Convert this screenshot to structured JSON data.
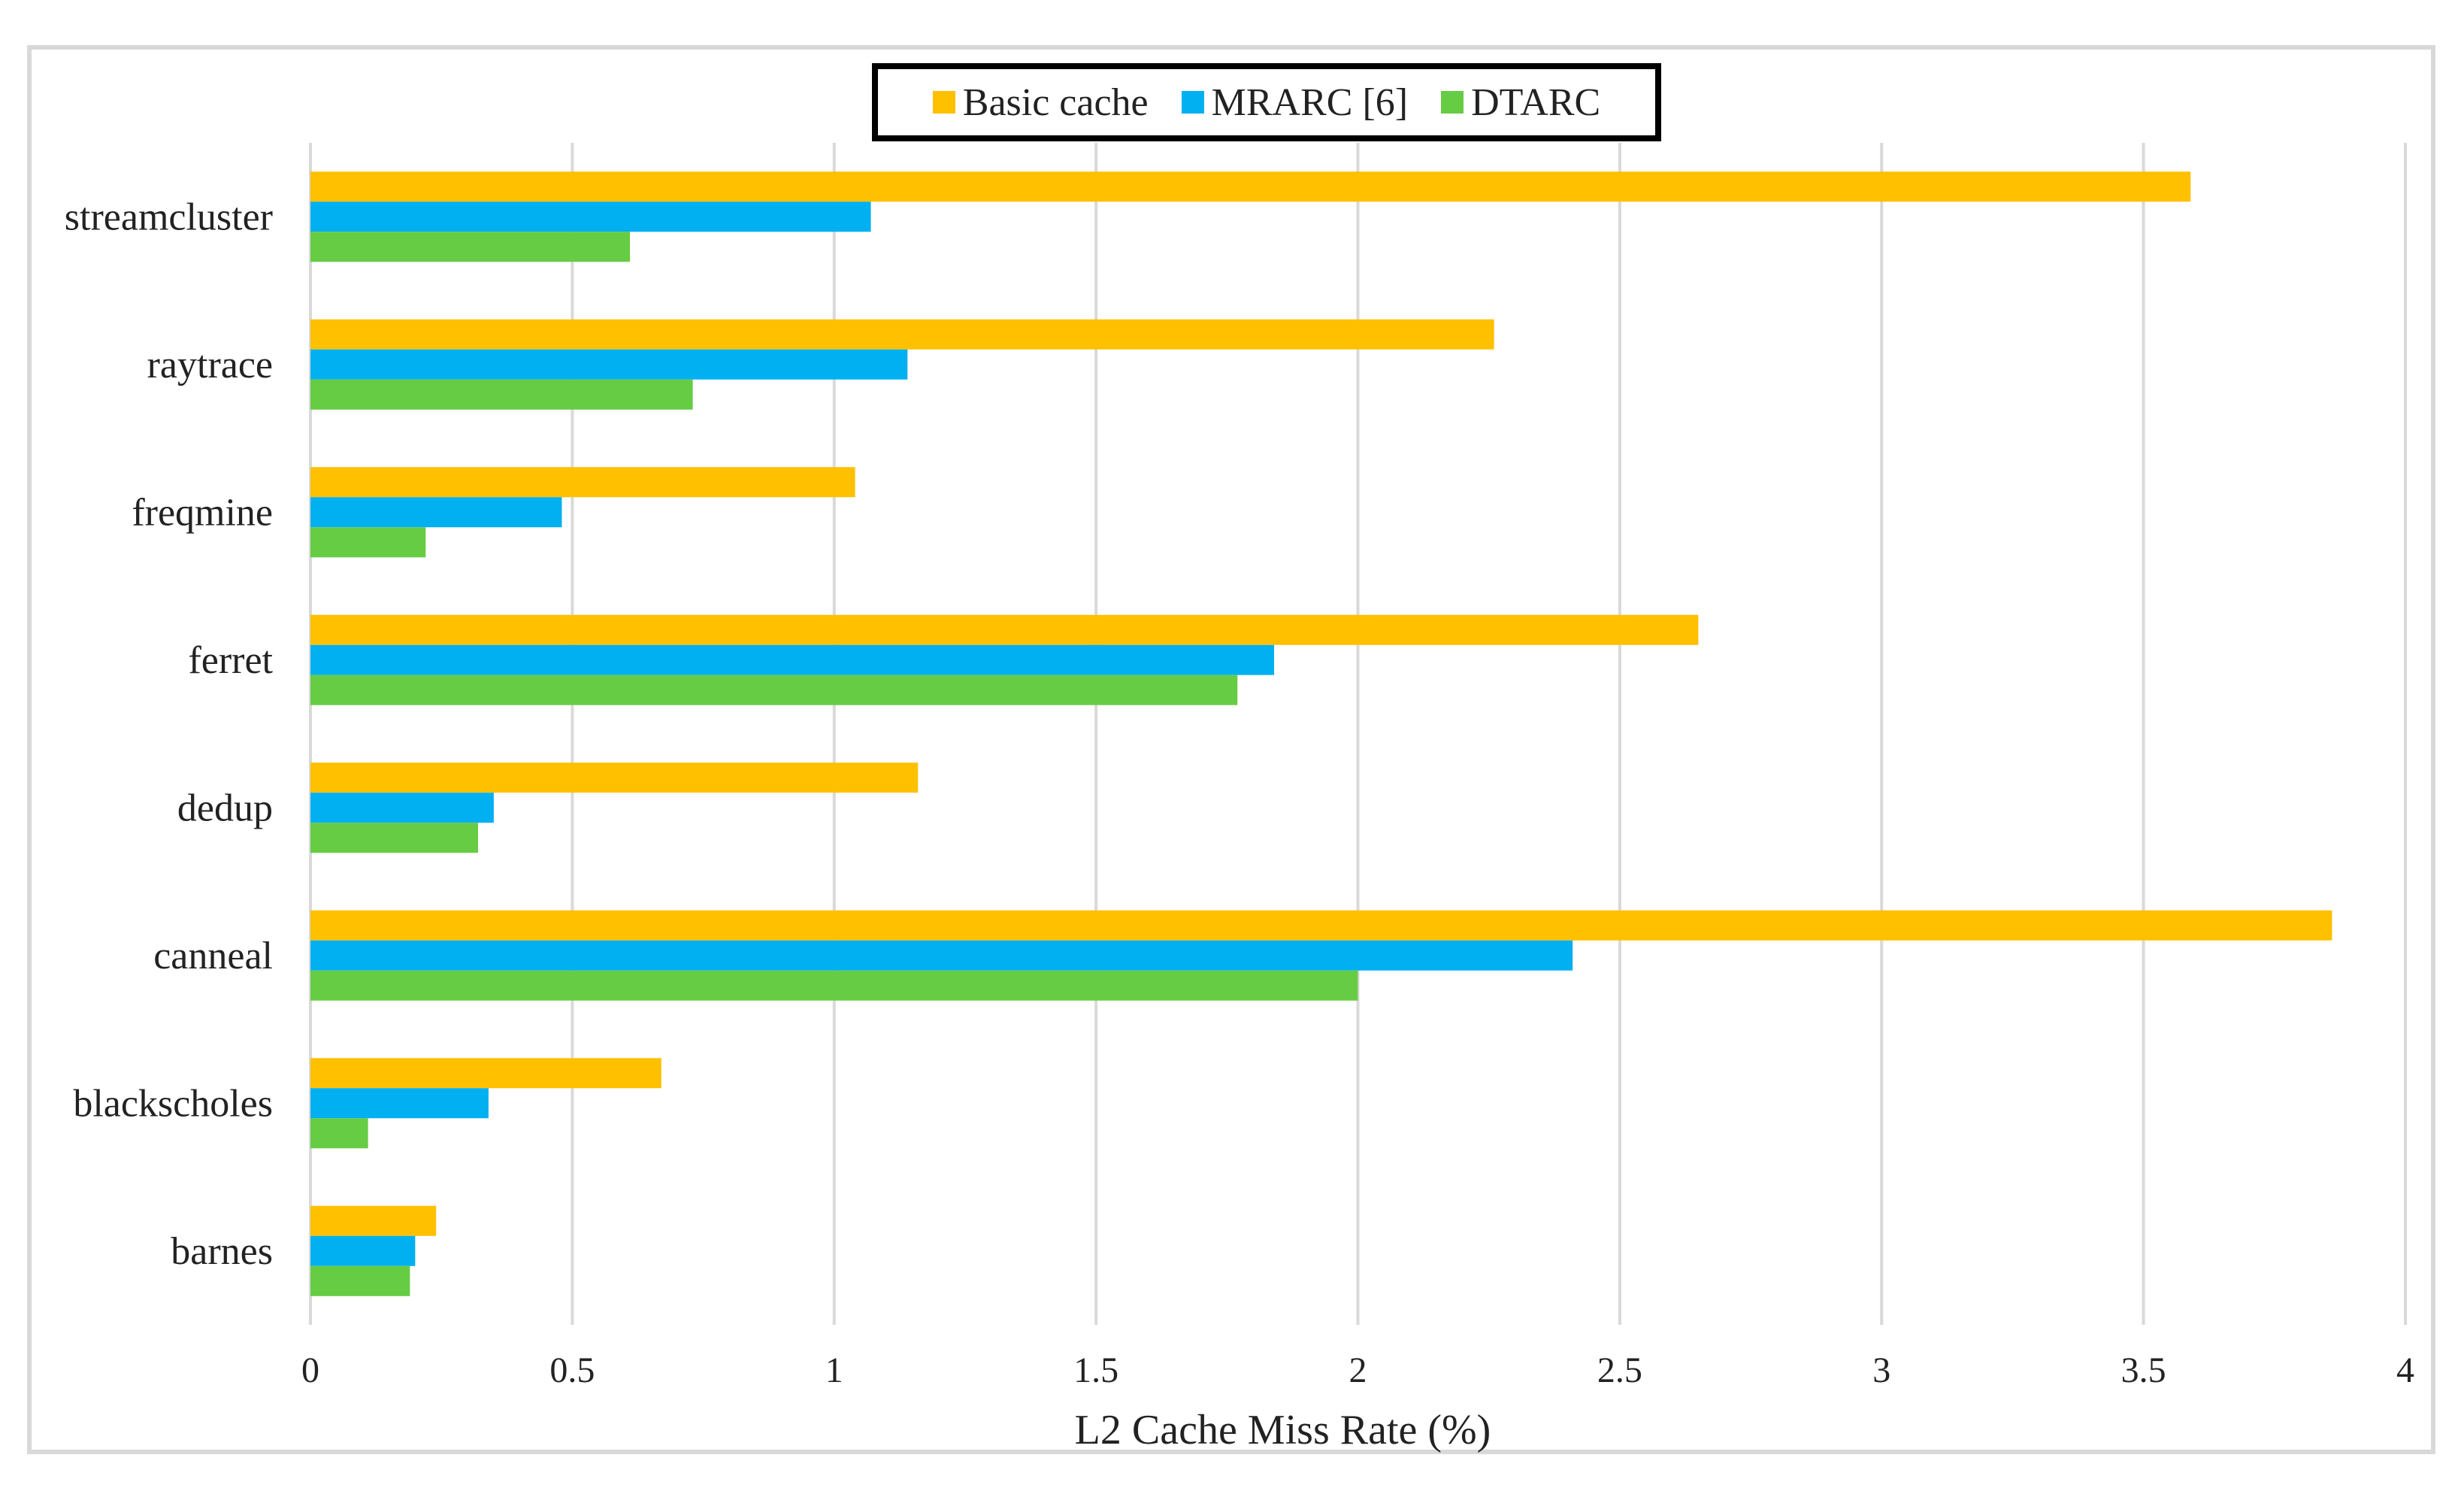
{
  "chart_data": {
    "type": "bar",
    "orientation": "horizontal",
    "title": "",
    "xlabel": "L2 Cache Miss Rate (%)",
    "ylabel": "",
    "xlim": [
      0,
      4
    ],
    "xticks": [
      "0",
      "0.5",
      "1",
      "1.5",
      "2",
      "2.5",
      "3",
      "3.5",
      "4"
    ],
    "grid": true,
    "legend_position": "top-center",
    "categories": [
      "streamcluster",
      "raytrace",
      "freqmine",
      "ferret",
      "dedup",
      "canneal",
      "blackscholes",
      "barnes"
    ],
    "series": [
      {
        "name": "Basic cache",
        "color": "#ffc000",
        "values": [
          3.59,
          2.26,
          1.04,
          2.65,
          1.16,
          3.86,
          0.67,
          0.24
        ]
      },
      {
        "name": "MRARC [6]",
        "color": "#00b0f0",
        "values": [
          1.07,
          1.14,
          0.48,
          1.84,
          0.35,
          2.41,
          0.34,
          0.2
        ]
      },
      {
        "name": "DTARC",
        "color": "#66cc44",
        "values": [
          0.61,
          0.73,
          0.22,
          1.77,
          0.32,
          2.0,
          0.11,
          0.19
        ]
      }
    ]
  }
}
